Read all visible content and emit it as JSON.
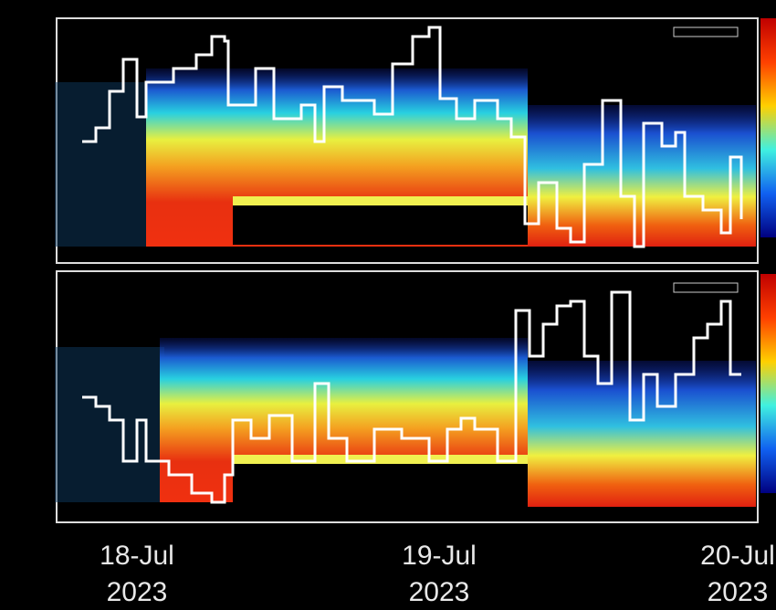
{
  "x_labels": [
    {
      "day": "18-Jul",
      "year": "2023"
    },
    {
      "day": "19-Jul",
      "year": "2023"
    },
    {
      "day": "20-Jul",
      "year": "2023"
    }
  ]
}
